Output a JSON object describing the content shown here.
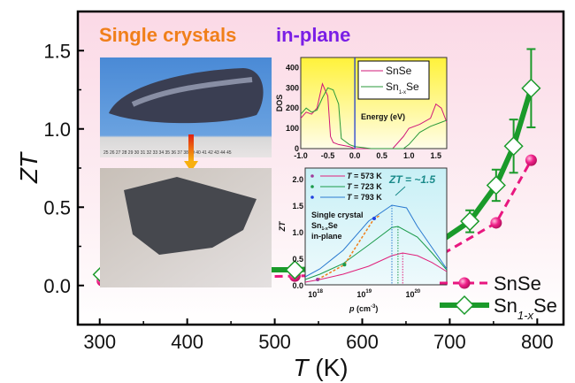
{
  "chart_data": [
    {
      "type": "line",
      "title": "",
      "xlabel": "T (K)",
      "ylabel": "ZT",
      "xlim": [
        275,
        830
      ],
      "ylim": [
        -0.25,
        1.75
      ],
      "xticks": [
        "300",
        "400",
        "500",
        "600",
        "700",
        "800"
      ],
      "yticks": [
        "0.0",
        "0.5",
        "1.0",
        "1.5"
      ],
      "legend": "bottom-right",
      "grid": false,
      "series": [
        {
          "name": "SnSe",
          "color": "#e8177f",
          "marker": "sphere",
          "style": "dashed",
          "x": [
            303,
            323,
            373,
            428,
            523,
            578,
            628,
            673,
            753,
            793
          ],
          "y": [
            0.03,
            0.04,
            0.05,
            0.05,
            0.06,
            0.07,
            0.08,
            0.14,
            0.4,
            0.8
          ]
        },
        {
          "name": "Sn1-xSe",
          "name_main": "Sn",
          "name_sub": "1-x",
          "name_tail": "Se",
          "color": "#1a9a2a",
          "marker": "open-diamond",
          "style": "solid",
          "x": [
            303,
            323,
            373,
            423,
            473,
            523,
            573,
            623,
            673,
            723,
            753,
            773,
            793
          ],
          "y": [
            0.07,
            0.08,
            0.09,
            0.09,
            0.1,
            0.1,
            0.11,
            0.13,
            0.22,
            0.41,
            0.64,
            0.89,
            1.26
          ],
          "err": [
            0.03,
            0.03,
            0.03,
            0.03,
            0.03,
            0.03,
            0.03,
            0.03,
            0.02,
            0.07,
            0.1,
            0.17,
            0.25
          ]
        }
      ],
      "annotation": {
        "part1": "Single crystals",
        "part1_color": "#f07f1a",
        "part2": "in-plane",
        "part2_color": "#7a1ee6"
      }
    },
    {
      "type": "line",
      "xlabel": "Energy (eV)",
      "ylabel": "DOS",
      "xlim": [
        -1.0,
        1.7
      ],
      "ylim": [
        0,
        450
      ],
      "xticks": [
        "-1.0",
        "-0.5",
        "0.0",
        "0.5",
        "1.0",
        "1.5"
      ],
      "yticks": [
        "0",
        "100",
        "200",
        "300",
        "400"
      ],
      "legend": "top-right",
      "series": [
        {
          "name": "SnSe",
          "color": "#d0187a",
          "x": [
            -1.0,
            -0.9,
            -0.8,
            -0.7,
            -0.6,
            -0.5,
            -0.45,
            -0.4,
            -0.3,
            -0.1,
            0.0,
            0.5,
            0.7,
            0.9,
            1.0,
            1.2,
            1.4,
            1.5,
            1.6,
            1.7
          ],
          "y": [
            150,
            180,
            170,
            200,
            320,
            260,
            60,
            30,
            20,
            10,
            0,
            0,
            0,
            60,
            100,
            120,
            150,
            220,
            200,
            130
          ]
        },
        {
          "name": "Sn1-xSe",
          "name_main": "Sn",
          "name_sub": "1-x",
          "name_tail": "Se",
          "color": "#2a9a3a",
          "x": [
            -1.0,
            -0.9,
            -0.8,
            -0.7,
            -0.6,
            -0.5,
            -0.4,
            -0.3,
            -0.25,
            -0.2,
            -0.1,
            0.0,
            0.3,
            0.7,
            0.9,
            1.0,
            1.2,
            1.4,
            1.6,
            1.7
          ],
          "y": [
            170,
            200,
            180,
            190,
            250,
            300,
            290,
            220,
            50,
            40,
            20,
            10,
            0,
            0,
            0,
            20,
            80,
            110,
            130,
            140
          ]
        }
      ]
    },
    {
      "type": "line",
      "xlabel": "p (cm-3)",
      "xlabel_main": "p",
      "xlabel_unit": "(cm",
      "xlabel_sup": "-3",
      "ylabel": "ZT",
      "xscale": "log",
      "xlim": [
        5e+17,
        4e+20
      ],
      "ylim": [
        0,
        2.2
      ],
      "xticks": [
        "10",
        "10",
        "10"
      ],
      "xtick_exps": [
        "18",
        "19",
        "20"
      ],
      "yticks": [
        "0.0",
        "0.5",
        "1.0",
        "1.5",
        "2.0"
      ],
      "legend": "top-left",
      "annotation": "ZT = ~1.5",
      "annotation_color": "#1a8a8a",
      "notes": [
        {
          "text": "Single crystal",
          "color": "#f08a1a"
        },
        {
          "text": "Sn1-xSe",
          "main": "Sn",
          "sub": "1-x",
          "tail": "Se",
          "color": "#7a1a9a"
        },
        {
          "text": "in-plane",
          "color": "#d020c0"
        }
      ],
      "series": [
        {
          "name": "T = 573 K",
          "color": "#e0207a",
          "peak_p": 5e+19,
          "x": [
            5e+17,
            1e+18,
            3e+18,
            1e+19,
            3e+19,
            5e+19,
            1e+20,
            2e+20,
            4e+20
          ],
          "y": [
            0.05,
            0.1,
            0.2,
            0.35,
            0.55,
            0.6,
            0.55,
            0.42,
            0.25
          ]
        },
        {
          "name": "T = 723 K",
          "color": "#1a9a4a",
          "peak_p": 4e+19,
          "x": [
            5e+17,
            1e+18,
            3e+18,
            1e+19,
            3e+19,
            4e+19,
            1e+20,
            2e+20,
            4e+20
          ],
          "y": [
            0.1,
            0.2,
            0.4,
            0.75,
            1.08,
            1.1,
            0.9,
            0.6,
            0.28
          ]
        },
        {
          "name": "T = 793 K",
          "color": "#2a7ad0",
          "peak_p": 3e+19,
          "x": [
            5e+17,
            1e+18,
            3e+18,
            1e+19,
            3e+19,
            6e+19,
            1e+20,
            2e+20,
            4e+20
          ],
          "y": [
            0.15,
            0.3,
            0.65,
            1.2,
            1.5,
            1.45,
            1.1,
            0.7,
            0.3
          ]
        }
      ],
      "experimental": {
        "color": "#f07f1a",
        "x": [
          9e+17,
          3.2e+18,
          1.3e+19
        ],
        "y": [
          0.1,
          0.38,
          1.25
        ],
        "colors": [
          "#a03a9a",
          "#1a9a4a",
          "#2040e0"
        ]
      }
    },
    {
      "type": "image",
      "photos": [
        "single-crystal-ingot-on-ruler",
        "cleaved-crystal-on-paper"
      ],
      "ruler_text": "25 26 27 28 29 30 31 32 33 34 35 36 37 38 39 40 41 42 43 44 45"
    }
  ]
}
